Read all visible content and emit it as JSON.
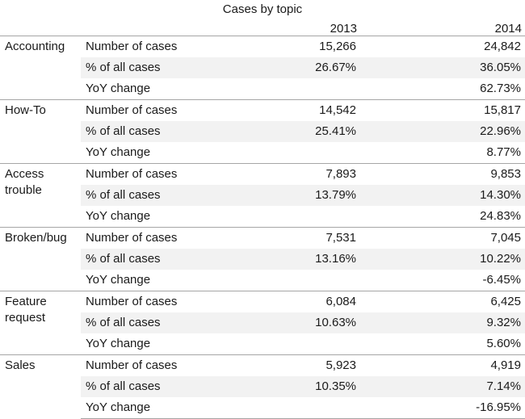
{
  "chart_data": {
    "type": "table",
    "title": "Cases by topic",
    "columns": [
      "2013",
      "2014"
    ],
    "rows": [
      {
        "topic": "Accounting",
        "metrics": [
          {
            "label": "Number of cases",
            "v2013": "15,266",
            "v2014": "24,842"
          },
          {
            "label": "% of all cases",
            "v2013": "26.67%",
            "v2014": "36.05%"
          },
          {
            "label": "YoY change",
            "v2013": "",
            "v2014": "62.73%"
          }
        ]
      },
      {
        "topic": "How-To",
        "metrics": [
          {
            "label": "Number of cases",
            "v2013": "14,542",
            "v2014": "15,817"
          },
          {
            "label": "% of all cases",
            "v2013": "25.41%",
            "v2014": "22.96%"
          },
          {
            "label": "YoY change",
            "v2013": "",
            "v2014": "8.77%"
          }
        ]
      },
      {
        "topic": "Access trouble",
        "metrics": [
          {
            "label": "Number of cases",
            "v2013": "7,893",
            "v2014": "9,853"
          },
          {
            "label": "% of all cases",
            "v2013": "13.79%",
            "v2014": "14.30%"
          },
          {
            "label": "YoY change",
            "v2013": "",
            "v2014": "24.83%"
          }
        ]
      },
      {
        "topic": "Broken/bug",
        "metrics": [
          {
            "label": "Number of cases",
            "v2013": "7,531",
            "v2014": "7,045"
          },
          {
            "label": "% of all cases",
            "v2013": "13.16%",
            "v2014": "10.22%"
          },
          {
            "label": "YoY change",
            "v2013": "",
            "v2014": "-6.45%"
          }
        ]
      },
      {
        "topic": "Feature request",
        "metrics": [
          {
            "label": "Number of cases",
            "v2013": "6,084",
            "v2014": "6,425"
          },
          {
            "label": "% of all cases",
            "v2013": "10.63%",
            "v2014": "9.32%"
          },
          {
            "label": "YoY change",
            "v2013": "",
            "v2014": "5.60%"
          }
        ]
      },
      {
        "topic": "Sales",
        "metrics": [
          {
            "label": "Number of cases",
            "v2013": "5,923",
            "v2014": "4,919"
          },
          {
            "label": "% of all cases",
            "v2013": "10.35%",
            "v2014": "7.14%"
          },
          {
            "label": "YoY change",
            "v2013": "",
            "v2014": "-16.95%"
          }
        ]
      }
    ]
  }
}
